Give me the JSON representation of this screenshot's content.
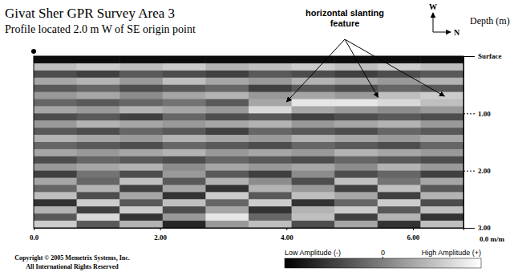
{
  "chart_data": {
    "type": "heatmap",
    "title": "Givat Sher GPR Survey Area 3",
    "subtitle": "Profile located 2.0 m W of SE origin point",
    "ylabel": "Depth (m)",
    "xlabel": "0.0 m/m",
    "compass": {
      "up": "W",
      "right": "N"
    },
    "copyright": [
      "Copyright © 2005 Memetrix Systems, Inc.",
      "All International Rights Reserved"
    ],
    "annotation": {
      "lines": [
        "horizontal slanting",
        "feature"
      ],
      "points": [
        [
          4.0,
          0.8
        ],
        [
          5.45,
          0.72
        ],
        [
          6.5,
          0.7
        ]
      ]
    },
    "xlim": [
      0,
      6.8
    ],
    "xticks": [
      {
        "value": 0,
        "label": "0.0"
      },
      {
        "value": 2,
        "label": "2.00"
      },
      {
        "value": 4,
        "label": "4.00"
      },
      {
        "value": 6,
        "label": "6.00"
      }
    ],
    "ylim": [
      0,
      3
    ],
    "yticks": [
      {
        "value": 0,
        "label": "Surface"
      },
      {
        "value": 1,
        "label": "1.00"
      },
      {
        "value": 2,
        "label": "2.00"
      },
      {
        "value": 3,
        "label": "3.00"
      }
    ],
    "xbins": [
      0,
      0.68,
      1.36,
      2.04,
      2.72,
      3.4,
      4.08,
      4.76,
      5.44,
      6.12,
      6.8
    ],
    "ybins": [
      0,
      0.125,
      0.25,
      0.375,
      0.5,
      0.625,
      0.75,
      0.875,
      1.0,
      1.125,
      1.25,
      1.375,
      1.5,
      1.625,
      1.75,
      1.875,
      2.0,
      2.125,
      2.25,
      2.375,
      2.5,
      2.625,
      2.75,
      2.875,
      3.0
    ],
    "cells": [
      [
        -0.9,
        -0.9,
        -0.9,
        -0.9,
        -0.9,
        -0.9,
        -0.9,
        -0.9,
        -0.9,
        -0.9
      ],
      [
        0.5,
        0.6,
        0.5,
        0.6,
        0.4,
        0.5,
        0.6,
        0.5,
        0.6,
        0.5
      ],
      [
        -0.4,
        -0.5,
        -0.3,
        -0.4,
        -0.5,
        -0.3,
        -0.4,
        -0.5,
        -0.4,
        -0.3
      ],
      [
        0.3,
        0.4,
        0.2,
        0.5,
        0.3,
        0.2,
        0.4,
        0.3,
        0.2,
        0.4
      ],
      [
        -0.3,
        -0.2,
        -0.4,
        -0.3,
        -0.2,
        -0.5,
        -0.3,
        -0.4,
        -0.2,
        -0.3
      ],
      [
        0.2,
        0.3,
        0.1,
        0.3,
        0.4,
        0.2,
        0.3,
        0.2,
        0.5,
        0.6
      ],
      [
        -0.2,
        -0.3,
        -0.2,
        -0.1,
        -0.3,
        0.3,
        0.8,
        0.8,
        0.7,
        0.5
      ],
      [
        0.3,
        0.2,
        0.4,
        0.3,
        0.2,
        0.7,
        0.3,
        0.2,
        0.1,
        0.2
      ],
      [
        -0.4,
        -0.3,
        -0.5,
        -0.2,
        -0.4,
        -0.3,
        -0.5,
        -0.4,
        -0.3,
        -0.4
      ],
      [
        0.2,
        0.4,
        0.3,
        0.2,
        0.3,
        0.4,
        0.2,
        0.3,
        0.4,
        0.2
      ],
      [
        -0.3,
        -0.4,
        -0.2,
        -0.3,
        -0.5,
        -0.2,
        -0.3,
        -0.4,
        -0.2,
        -0.3
      ],
      [
        0.4,
        0.3,
        0.2,
        0.4,
        0.3,
        0.2,
        0.4,
        0.3,
        0.2,
        0.3
      ],
      [
        -0.2,
        -0.3,
        -0.4,
        -0.2,
        -0.3,
        -0.4,
        -0.2,
        -0.3,
        -0.4,
        -0.2
      ],
      [
        0.3,
        0.2,
        0.3,
        0.4,
        0.2,
        0.3,
        0.2,
        0.4,
        0.3,
        0.2
      ],
      [
        -0.4,
        -0.2,
        -0.3,
        -0.4,
        -0.2,
        -0.3,
        -0.4,
        -0.2,
        -0.3,
        -0.4
      ],
      [
        0.2,
        0.3,
        0.4,
        0.1,
        0.3,
        0.2,
        0.3,
        0.1,
        0.4,
        0.2
      ],
      [
        -0.5,
        -0.1,
        -0.4,
        0.2,
        -0.3,
        -0.5,
        0.1,
        -0.4,
        -0.2,
        -0.5
      ],
      [
        0.3,
        -0.2,
        0.5,
        -0.3,
        0.4,
        0.1,
        -0.4,
        0.5,
        -0.1,
        0.3
      ],
      [
        -0.2,
        0.4,
        -0.5,
        0.3,
        -0.6,
        0.4,
        0.2,
        -0.5,
        0.5,
        -0.3
      ],
      [
        0.5,
        -0.4,
        0.3,
        -0.6,
        0.6,
        -0.3,
        0.5,
        0.3,
        -0.5,
        0.4
      ],
      [
        -0.6,
        0.6,
        -0.3,
        0.5,
        -0.2,
        0.6,
        -0.6,
        -0.2,
        0.6,
        -0.4
      ],
      [
        0.4,
        -0.5,
        0.6,
        -0.4,
        0.3,
        -0.6,
        0.4,
        0.6,
        -0.3,
        0.5
      ],
      [
        -0.3,
        0.7,
        -0.6,
        0.2,
        0.8,
        -0.2,
        0.5,
        -0.5,
        0.4,
        -0.6
      ],
      [
        0.6,
        -0.3,
        0.4,
        -0.7,
        0.2,
        0.5,
        -0.4,
        0.3,
        -0.6,
        0.5
      ]
    ],
    "colorbar": {
      "range": [
        -1,
        1
      ],
      "ticks": [
        0
      ],
      "low_label": "Low Amplitude (-)",
      "high_label": "High Amplitude (+)"
    }
  }
}
